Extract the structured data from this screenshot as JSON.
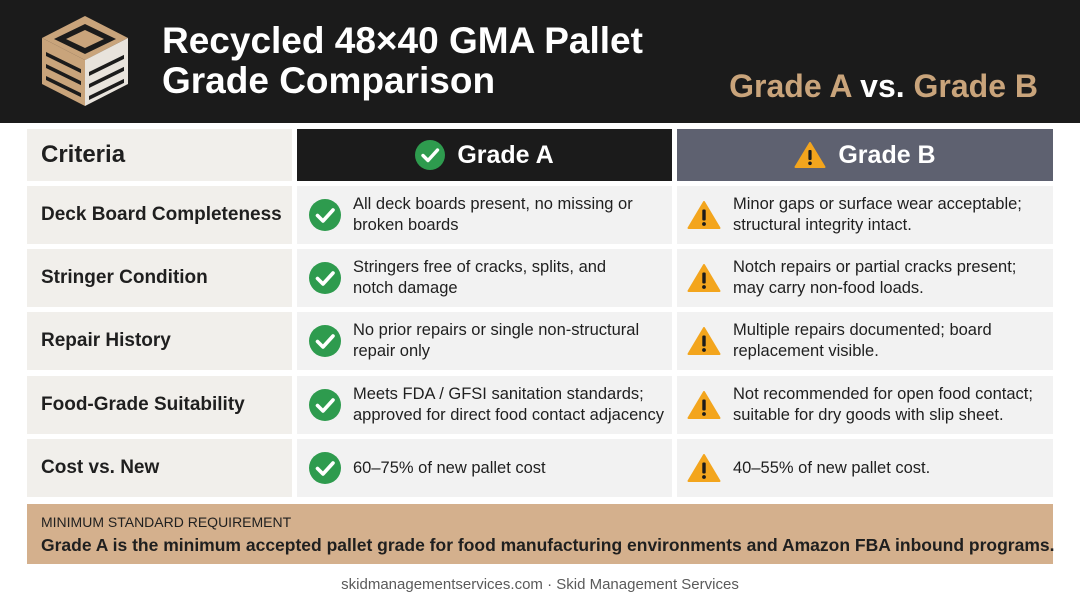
{
  "header": {
    "title_line1": "Recycled 48×40 GMA Pallet",
    "title_line2": "Grade Comparison",
    "subtitle_a": "Grade A",
    "subtitle_vs": " vs. ",
    "subtitle_b": "Grade B",
    "logo_icon": "pallet-logo-icon",
    "accent_color": "#c9a47b"
  },
  "table": {
    "headers": {
      "criteria": "Criteria",
      "grade_a": "Grade A",
      "grade_b": "Grade B"
    },
    "rows": [
      {
        "criteria": "Deck Board Completeness",
        "grade_a": [
          "All deck boards present, no missing or",
          "broken boards"
        ],
        "grade_b": [
          "Minor gaps or surface wear acceptable;",
          "structural integrity intact."
        ]
      },
      {
        "criteria": "Stringer Condition",
        "grade_a": [
          "Stringers free of cracks, splits, and",
          "notch damage"
        ],
        "grade_b": [
          "Notch repairs or partial cracks present;",
          "may carry non-food loads."
        ]
      },
      {
        "criteria": "Repair History",
        "grade_a": [
          "No prior repairs or single non-structural",
          "repair only"
        ],
        "grade_b": [
          "Multiple repairs documented; board",
          "replacement visible."
        ]
      },
      {
        "criteria": "Food-Grade Suitability",
        "grade_a": [
          "Meets FDA / GFSI sanitation standards;",
          "approved for direct food contact adjacency"
        ],
        "grade_b": [
          "Not recommended for open food contact;",
          "suitable for dry goods with slip sheet."
        ]
      },
      {
        "criteria": "Cost vs. New",
        "grade_a": [
          "60–75% of new pallet cost"
        ],
        "grade_b": [
          "40–55% of new pallet cost."
        ]
      }
    ],
    "grade_a_icon": "check-circle-icon",
    "grade_b_icon": "warning-triangle-icon",
    "check_color": "#2e9b4e",
    "warning_color": "#f3a51d"
  },
  "note": {
    "label": "MINIMUM STANDARD REQUIREMENT",
    "text": "Grade A is the minimum accepted pallet grade for food manufacturing environments and Amazon FBA inbound programs."
  },
  "footer": {
    "text": "skidmanagementservices.com · Skid Management Services"
  }
}
